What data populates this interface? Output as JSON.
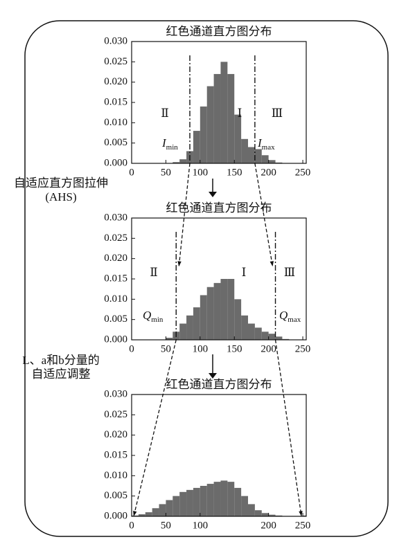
{
  "chart_data": [
    {
      "type": "histogram",
      "title": "红色通道直方图分布",
      "bins": [
        0,
        10,
        20,
        30,
        40,
        50,
        60,
        70,
        80,
        90,
        100,
        110,
        120,
        130,
        140,
        150,
        160,
        170,
        180,
        190,
        200,
        210,
        220,
        230,
        240,
        250,
        255
      ],
      "values": [
        0,
        0,
        0,
        0,
        0,
        0,
        0.0003,
        0.001,
        0.003,
        0.008,
        0.014,
        0.019,
        0.022,
        0.025,
        0.022,
        0.012,
        0.006,
        0.004,
        0.0035,
        0.002,
        0.0008,
        0.0002,
        0,
        0,
        0,
        0
      ],
      "color": "#6b6b6b",
      "xlim": [
        0,
        255
      ],
      "ylim": [
        0,
        0.03
      ],
      "xticks": [
        0,
        50,
        100,
        150,
        200,
        250
      ],
      "yticks": [
        {
          "value": 0,
          "label": "0.000"
        },
        {
          "value": 0.005,
          "label": "0.005"
        },
        {
          "value": 0.01,
          "label": "0.010"
        },
        {
          "value": 0.015,
          "label": "0.015"
        },
        {
          "value": 0.02,
          "label": "0.020"
        },
        {
          "value": 0.025,
          "label": "0.025"
        },
        {
          "value": 0.03,
          "label": "0.030"
        }
      ],
      "markers": [
        85,
        180
      ],
      "annotations": [
        "Ⅱ",
        "Ⅰ",
        "Ⅲ"
      ],
      "marker_labels": [
        {
          "symbol": "I",
          "sub": "min"
        },
        {
          "symbol": "I",
          "sub": "max"
        }
      ]
    },
    {
      "type": "histogram",
      "title": "红色通道直方图分布",
      "bins": [
        0,
        10,
        20,
        30,
        40,
        50,
        60,
        70,
        80,
        90,
        100,
        110,
        120,
        130,
        140,
        150,
        160,
        170,
        180,
        190,
        200,
        210,
        220,
        230,
        240,
        250,
        255
      ],
      "values": [
        0,
        0,
        0,
        0,
        0,
        0.0005,
        0.002,
        0.004,
        0.006,
        0.008,
        0.011,
        0.013,
        0.014,
        0.015,
        0.015,
        0.01,
        0.006,
        0.004,
        0.003,
        0.002,
        0.0015,
        0.0008,
        0.0002,
        0,
        0,
        0
      ],
      "color": "#6b6b6b",
      "xlim": [
        0,
        255
      ],
      "ylim": [
        0,
        0.03
      ],
      "xticks": [
        0,
        50,
        100,
        150,
        200,
        250
      ],
      "yticks": [
        {
          "value": 0,
          "label": "0.000"
        },
        {
          "value": 0.005,
          "label": "0.005"
        },
        {
          "value": 0.01,
          "label": "0.010"
        },
        {
          "value": 0.015,
          "label": "0.015"
        },
        {
          "value": 0.02,
          "label": "0.020"
        },
        {
          "value": 0.025,
          "label": "0.025"
        },
        {
          "value": 0.03,
          "label": "0.030"
        }
      ],
      "markers": [
        65,
        210
      ],
      "annotations": [
        "Ⅱ",
        "Ⅰ",
        "Ⅲ"
      ],
      "marker_labels": [
        {
          "symbol": "Q",
          "sub": "min"
        },
        {
          "symbol": "Q",
          "sub": "max"
        }
      ]
    },
    {
      "type": "histogram",
      "title": "红色通道直方图分布",
      "bins": [
        0,
        10,
        20,
        30,
        40,
        50,
        60,
        70,
        80,
        90,
        100,
        110,
        120,
        130,
        140,
        150,
        160,
        170,
        180,
        190,
        200,
        210,
        220,
        230,
        240,
        250,
        255
      ],
      "values": [
        0.0002,
        0.0005,
        0.001,
        0.002,
        0.003,
        0.004,
        0.005,
        0.006,
        0.0065,
        0.007,
        0.0075,
        0.008,
        0.0085,
        0.0088,
        0.0085,
        0.007,
        0.005,
        0.003,
        0.0015,
        0.0008,
        0.0004,
        0.0002,
        0.0001,
        0.0001,
        0.0001,
        0.0002
      ],
      "color": "#6b6b6b",
      "xlim": [
        0,
        255
      ],
      "ylim": [
        0,
        0.03
      ],
      "xticks": [
        0,
        50,
        100,
        200,
        250
      ],
      "yticks": [
        {
          "value": 0,
          "label": "0.000"
        },
        {
          "value": 0.005,
          "label": "0.005"
        },
        {
          "value": 0.01,
          "label": "0.010"
        },
        {
          "value": 0.015,
          "label": "0.015"
        },
        {
          "value": 0.02,
          "label": "0.020"
        },
        {
          "value": 0.025,
          "label": "0.025"
        },
        {
          "value": 0.03,
          "label": "0.030"
        }
      ]
    }
  ],
  "steps": [
    [
      "自适应直方图拉伸",
      "(AHS)"
    ],
    [
      "L、a和b分量的",
      "自适应调整"
    ]
  ]
}
